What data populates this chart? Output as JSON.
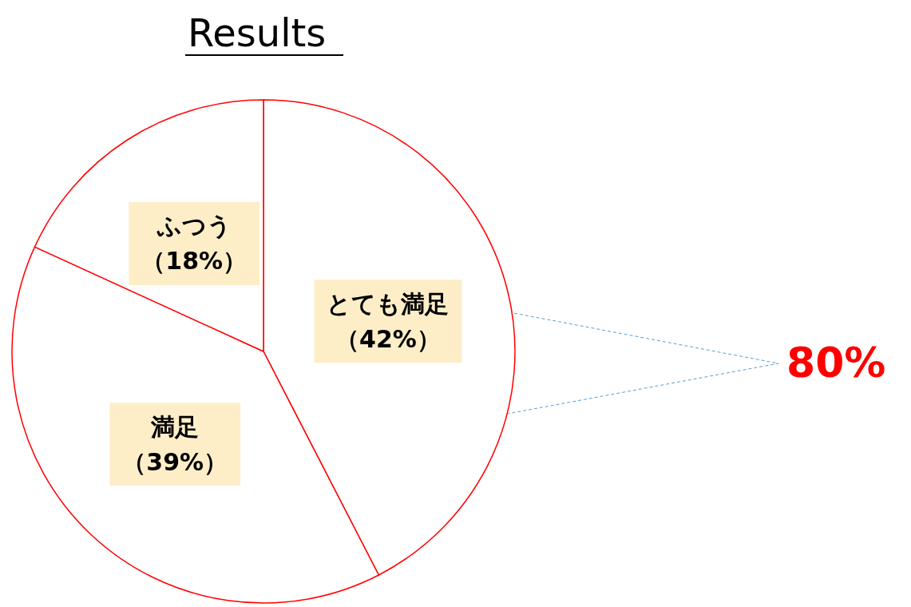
{
  "chart_data": {
    "type": "pie",
    "title": "Results",
    "categories": [
      "とても満足",
      "満足",
      "ふつう"
    ],
    "values": [
      42,
      39,
      18
    ],
    "colors": [
      "#ffffff",
      "#ffffff",
      "#ffffff"
    ],
    "value_labels": [
      "（42%）",
      "（39%）",
      "（18%）"
    ],
    "annotations": [
      "80%"
    ]
  }
}
